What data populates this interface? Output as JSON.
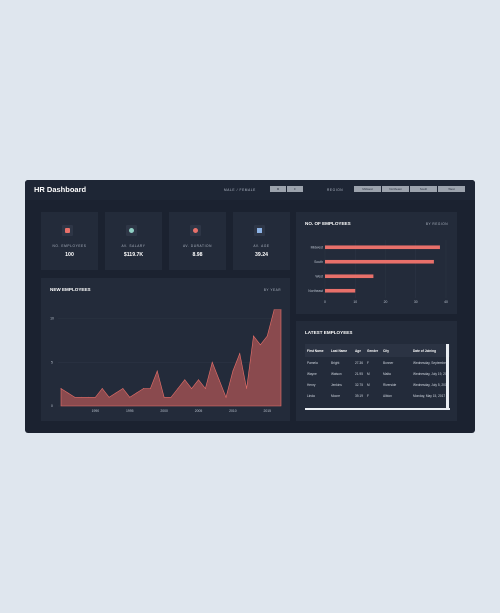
{
  "header": {
    "title": "HR Dashboard",
    "gender_label": "MALE / FEMALE",
    "gender_buttons": [
      "M",
      "F"
    ],
    "region_label": "REGION",
    "region_buttons": [
      "Midwest",
      "Northeast",
      "South",
      "West"
    ]
  },
  "kpis": [
    {
      "label": "NO. EMPLOYEES",
      "value": "100",
      "icon": "user-icon",
      "color": "#e8706a"
    },
    {
      "label": "AV. SALARY",
      "value": "$119.7K",
      "icon": "dollar-icon",
      "color": "#8fcfc4"
    },
    {
      "label": "AV. DURATION",
      "value": "8.98",
      "icon": "clock-icon",
      "color": "#e8706a"
    },
    {
      "label": "AV. AGE",
      "value": "39.24",
      "icon": "calendar-icon",
      "color": "#8db3e6"
    }
  ],
  "colors": {
    "accent": "#e8706a",
    "area_fill": "#8a4a4e",
    "panel": "#232b3a",
    "background": "#1b2230"
  },
  "employees_by_region": {
    "title": "NO. OF EMPLOYEES",
    "subtitle": "BY REGION",
    "chart_data": {
      "type": "bar",
      "orientation": "horizontal",
      "categories": [
        "Midwest",
        "South",
        "West",
        "Northeast"
      ],
      "values": [
        38,
        36,
        16,
        10
      ],
      "xticks": [
        0,
        10,
        20,
        30,
        40
      ],
      "xlim": [
        0,
        40
      ]
    }
  },
  "new_employees": {
    "title": "NEW EMPLOYEES",
    "subtitle": "BY YEAR",
    "chart_data": {
      "type": "area",
      "x": [
        1985,
        1986,
        1987,
        1988,
        1989,
        1990,
        1991,
        1992,
        1993,
        1994,
        1995,
        1996,
        1997,
        1998,
        1999,
        2000,
        2001,
        2002,
        2003,
        2004,
        2005,
        2006,
        2007,
        2008,
        2009,
        2010,
        2011,
        2012,
        2013,
        2014,
        2015,
        2016,
        2017
      ],
      "y": [
        2,
        1.5,
        1,
        1,
        1,
        1,
        2,
        1,
        1.5,
        2,
        1,
        1.5,
        2,
        2,
        4,
        1,
        1,
        2,
        3,
        2,
        3,
        2,
        5,
        3,
        1,
        4,
        6,
        2,
        8,
        7,
        8,
        11,
        11
      ],
      "xticks": [
        1990,
        1995,
        2000,
        2005,
        2010,
        2015
      ],
      "yticks": [
        0,
        5,
        10
      ],
      "ylim": [
        0,
        12
      ],
      "xlim": [
        1985,
        2017
      ]
    }
  },
  "latest_employees": {
    "title": "LATEST EMPLOYEES",
    "columns": [
      "First Name",
      "Last Name",
      "Age",
      "Gender",
      "City",
      "Date of Joining"
    ],
    "rows": [
      [
        "Pamela",
        "Bright",
        "27.36",
        "F",
        "Bonner",
        "Wednesday, Septembe"
      ],
      [
        "Wayne",
        "Watson",
        "21.95",
        "M",
        "Malta",
        "Wednesday, July 19, 20"
      ],
      [
        "Henry",
        "Jenkins",
        "32.75",
        "M",
        "Riverside",
        "Wednesday, July 5, 201"
      ],
      [
        "Linda",
        "Moore",
        "39.19",
        "F",
        "Albion",
        "Monday, May 15, 2017"
      ]
    ]
  }
}
